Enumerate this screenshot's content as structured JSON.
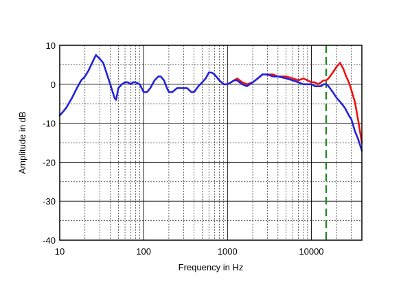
{
  "chart_data": {
    "type": "line",
    "xlabel": "Frequency in Hz",
    "ylabel": "Amplitude in dB",
    "x_scale": "log",
    "xlim": [
      10,
      40000
    ],
    "ylim": [
      -40,
      10
    ],
    "x_ticks": [
      {
        "value": 10,
        "label": "10"
      },
      {
        "value": 100,
        "label": "100"
      },
      {
        "value": 1000,
        "label": "1000"
      },
      {
        "value": 10000,
        "label": "10000"
      }
    ],
    "y_ticks": [
      {
        "value": 10,
        "label": "10"
      },
      {
        "value": 0,
        "label": "0"
      },
      {
        "value": -10,
        "label": "-10"
      },
      {
        "value": -20,
        "label": "-20"
      },
      {
        "value": -30,
        "label": "-30"
      },
      {
        "value": -40,
        "label": "-40"
      }
    ],
    "grid": true,
    "reference_line": {
      "x": 15000,
      "color": "#1a8a1a",
      "style": "dashed"
    },
    "series": [
      {
        "color": "#2222dd",
        "points": [
          [
            10,
            -8
          ],
          [
            11,
            -7
          ],
          [
            12,
            -6
          ],
          [
            14,
            -3.5
          ],
          [
            16,
            -1
          ],
          [
            18,
            1
          ],
          [
            20,
            2
          ],
          [
            22,
            3.5
          ],
          [
            25,
            6
          ],
          [
            27,
            7.5
          ],
          [
            30,
            6.5
          ],
          [
            33,
            5.5
          ],
          [
            36,
            3
          ],
          [
            40,
            0
          ],
          [
            45,
            -3.5
          ],
          [
            47,
            -4
          ],
          [
            50,
            -1
          ],
          [
            55,
            0
          ],
          [
            60,
            0.5
          ],
          [
            65,
            0.5
          ],
          [
            70,
            0
          ],
          [
            75,
            0.5
          ],
          [
            80,
            0.5
          ],
          [
            90,
            0
          ],
          [
            100,
            -2
          ],
          [
            110,
            -2
          ],
          [
            120,
            -1
          ],
          [
            135,
            1
          ],
          [
            150,
            2
          ],
          [
            160,
            2
          ],
          [
            175,
            1
          ],
          [
            190,
            -1
          ],
          [
            200,
            -2
          ],
          [
            220,
            -2
          ],
          [
            250,
            -1
          ],
          [
            300,
            -1
          ],
          [
            330,
            -1
          ],
          [
            370,
            -2
          ],
          [
            400,
            -2
          ],
          [
            450,
            -0.5
          ],
          [
            500,
            0.5
          ],
          [
            550,
            1.5
          ],
          [
            600,
            3
          ],
          [
            650,
            3
          ],
          [
            700,
            2.5
          ],
          [
            800,
            1
          ],
          [
            900,
            0
          ],
          [
            1000,
            0
          ],
          [
            1100,
            0.5
          ],
          [
            1200,
            1
          ],
          [
            1300,
            1
          ],
          [
            1500,
            0
          ],
          [
            1700,
            -0.5
          ],
          [
            2000,
            0.5
          ],
          [
            2300,
            1.5
          ],
          [
            2600,
            2.5
          ],
          [
            3000,
            2.5
          ],
          [
            3500,
            2
          ],
          [
            4000,
            2
          ],
          [
            5000,
            1.5
          ],
          [
            6000,
            1
          ],
          [
            7000,
            0.5
          ],
          [
            8000,
            0
          ],
          [
            9000,
            0
          ],
          [
            10000,
            0
          ],
          [
            11000,
            -0.5
          ],
          [
            12000,
            -0.5
          ],
          [
            13000,
            -0.5
          ],
          [
            14000,
            0
          ],
          [
            15000,
            0
          ],
          [
            16000,
            -0.5
          ],
          [
            18000,
            -2
          ],
          [
            20000,
            -3.5
          ],
          [
            22000,
            -4.5
          ],
          [
            25000,
            -6
          ],
          [
            28000,
            -8
          ],
          [
            30000,
            -9
          ],
          [
            33000,
            -12
          ],
          [
            36000,
            -14
          ],
          [
            40000,
            -17
          ]
        ]
      },
      {
        "color": "#ee1111",
        "points": [
          [
            1000,
            0
          ],
          [
            1100,
            0.5
          ],
          [
            1200,
            1
          ],
          [
            1300,
            1.5
          ],
          [
            1500,
            0.5
          ],
          [
            1700,
            0
          ],
          [
            2000,
            0.5
          ],
          [
            2300,
            1.5
          ],
          [
            2600,
            2.5
          ],
          [
            3000,
            2.5
          ],
          [
            3500,
            2.5
          ],
          [
            4000,
            2
          ],
          [
            5000,
            2
          ],
          [
            6000,
            1.5
          ],
          [
            7000,
            1
          ],
          [
            8000,
            1.5
          ],
          [
            9000,
            1
          ],
          [
            10000,
            0.5
          ],
          [
            11000,
            0.5
          ],
          [
            12000,
            0
          ],
          [
            13000,
            0.5
          ],
          [
            14000,
            1
          ],
          [
            15000,
            1
          ],
          [
            16000,
            1.5
          ],
          [
            18000,
            3
          ],
          [
            20000,
            4.5
          ],
          [
            22000,
            5.5
          ],
          [
            24000,
            4
          ],
          [
            26000,
            2
          ],
          [
            28000,
            0.5
          ],
          [
            30000,
            -1.5
          ],
          [
            33000,
            -4.5
          ],
          [
            36000,
            -9
          ],
          [
            40000,
            -15
          ]
        ]
      }
    ]
  }
}
